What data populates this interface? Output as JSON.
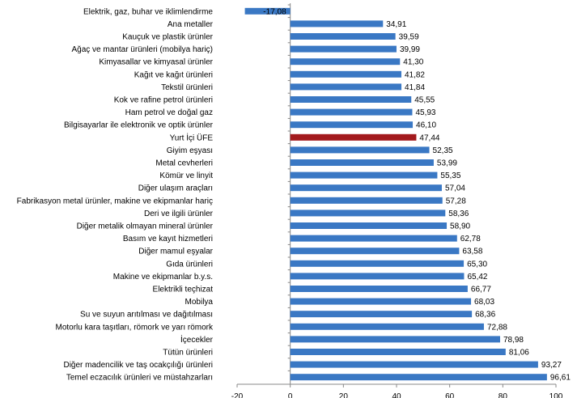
{
  "chart_data": {
    "type": "bar",
    "orientation": "horizontal",
    "title": "",
    "xlabel": "",
    "ylabel": "",
    "xlim": [
      -20,
      100
    ],
    "xticks": [
      -20,
      0,
      20,
      40,
      60,
      80,
      100
    ],
    "grid": false,
    "legend": "none",
    "bar_color": "#3a78c4",
    "highlight_color": "#a31a1d",
    "highlight_category": "Yurt İçi ÜFE",
    "categories": [
      "Elektrik, gaz, buhar ve iklimlendirme",
      "Ana metaller",
      "Kauçuk ve plastik ürünler",
      "Ağaç ve mantar ürünleri (mobilya hariç)",
      "Kimyasallar ve kimyasal ürünler",
      "Kağıt ve kağıt ürünleri",
      "Tekstil ürünleri",
      "Kok ve rafine petrol ürünleri",
      "Ham petrol ve doğal gaz",
      "Bilgisayarlar ile elektronik ve optik ürünler",
      "Yurt İçi ÜFE",
      "Giyim eşyası",
      "Metal cevherleri",
      "Kömür ve linyit",
      "Diğer ulaşım araçları",
      "Fabrikasyon metal ürünler, makine ve ekipmanlar hariç",
      "Deri ve ilgili ürünler",
      "Diğer metalik olmayan mineral ürünler",
      "Basım ve kayıt hizmetleri",
      "Diğer mamul eşyalar",
      "Gıda ürünleri",
      "Makine ve ekipmanlar b.y.s.",
      "Elektrikli teçhizat",
      "Mobilya",
      "Su ve suyun arıtılması ve dağıtılması",
      "Motorlu kara taşıtları, römork ve yarı römork",
      "İçecekler",
      "Tütün ürünleri",
      "Diğer madencilik ve taş ocakçılığı ürünleri",
      "Temel eczacılık ürünleri ve müstahzarları"
    ],
    "values": [
      -17.08,
      34.91,
      39.59,
      39.99,
      41.3,
      41.82,
      41.84,
      45.55,
      45.93,
      46.1,
      47.44,
      52.35,
      53.99,
      55.35,
      57.04,
      57.28,
      58.36,
      58.9,
      62.78,
      63.58,
      65.3,
      65.42,
      66.77,
      68.03,
      68.36,
      72.88,
      78.98,
      81.06,
      93.27,
      96.61
    ],
    "value_labels": [
      "-17,08",
      "34,91",
      "39,59",
      "39,99",
      "41,30",
      "41,82",
      "41,84",
      "45,55",
      "45,93",
      "46,10",
      "47,44",
      "52,35",
      "53,99",
      "55,35",
      "57,04",
      "57,28",
      "58,36",
      "58,90",
      "62,78",
      "63,58",
      "65,30",
      "65,42",
      "66,77",
      "68,03",
      "68,36",
      "72,88",
      "78,98",
      "81,06",
      "93,27",
      "96,61"
    ]
  }
}
